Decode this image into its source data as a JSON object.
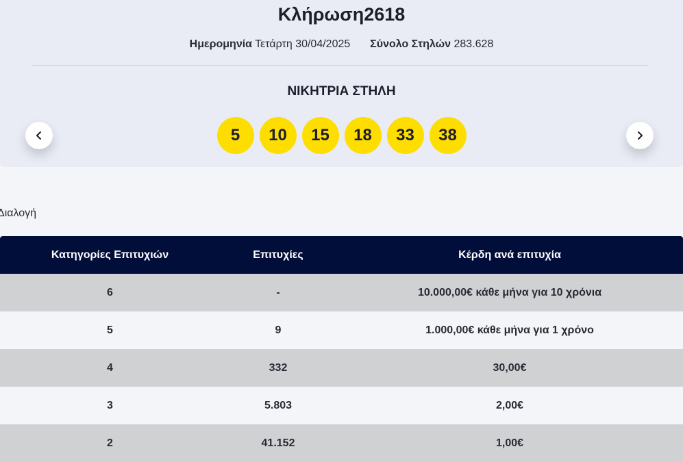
{
  "draw": {
    "title": "Κλήρωση2618",
    "date_label": "Ημερομηνία",
    "date_value": "Τετάρτη 30/04/2025",
    "columns_label": "Σύνολο Στηλών",
    "columns_value": "283.628"
  },
  "winning": {
    "label": "ΝΙΚΗΤΡΙΑ ΣΤΗΛΗ",
    "numbers": [
      "5",
      "10",
      "15",
      "18",
      "33",
      "38"
    ],
    "ball_color": "#fedd00"
  },
  "nav": {
    "prev_icon": "chevron-left-icon",
    "next_icon": "chevron-right-icon"
  },
  "section": {
    "label": "Διαλογή"
  },
  "table": {
    "headers": [
      "Κατηγορίες Επιτυχιών",
      "Επιτυχίες",
      "Κέρδη ανά επιτυχία"
    ],
    "header_bg": "#020e3a",
    "rows": [
      [
        "6",
        "-",
        "10.000,00€ κάθε μήνα για 10 χρόνια"
      ],
      [
        "5",
        "9",
        "1.000,00€ κάθε μήνα για 1 χρόνο"
      ],
      [
        "4",
        "332",
        "30,00€"
      ],
      [
        "3",
        "5.803",
        "2,00€"
      ],
      [
        "2",
        "41.152",
        "1,00€"
      ]
    ]
  }
}
